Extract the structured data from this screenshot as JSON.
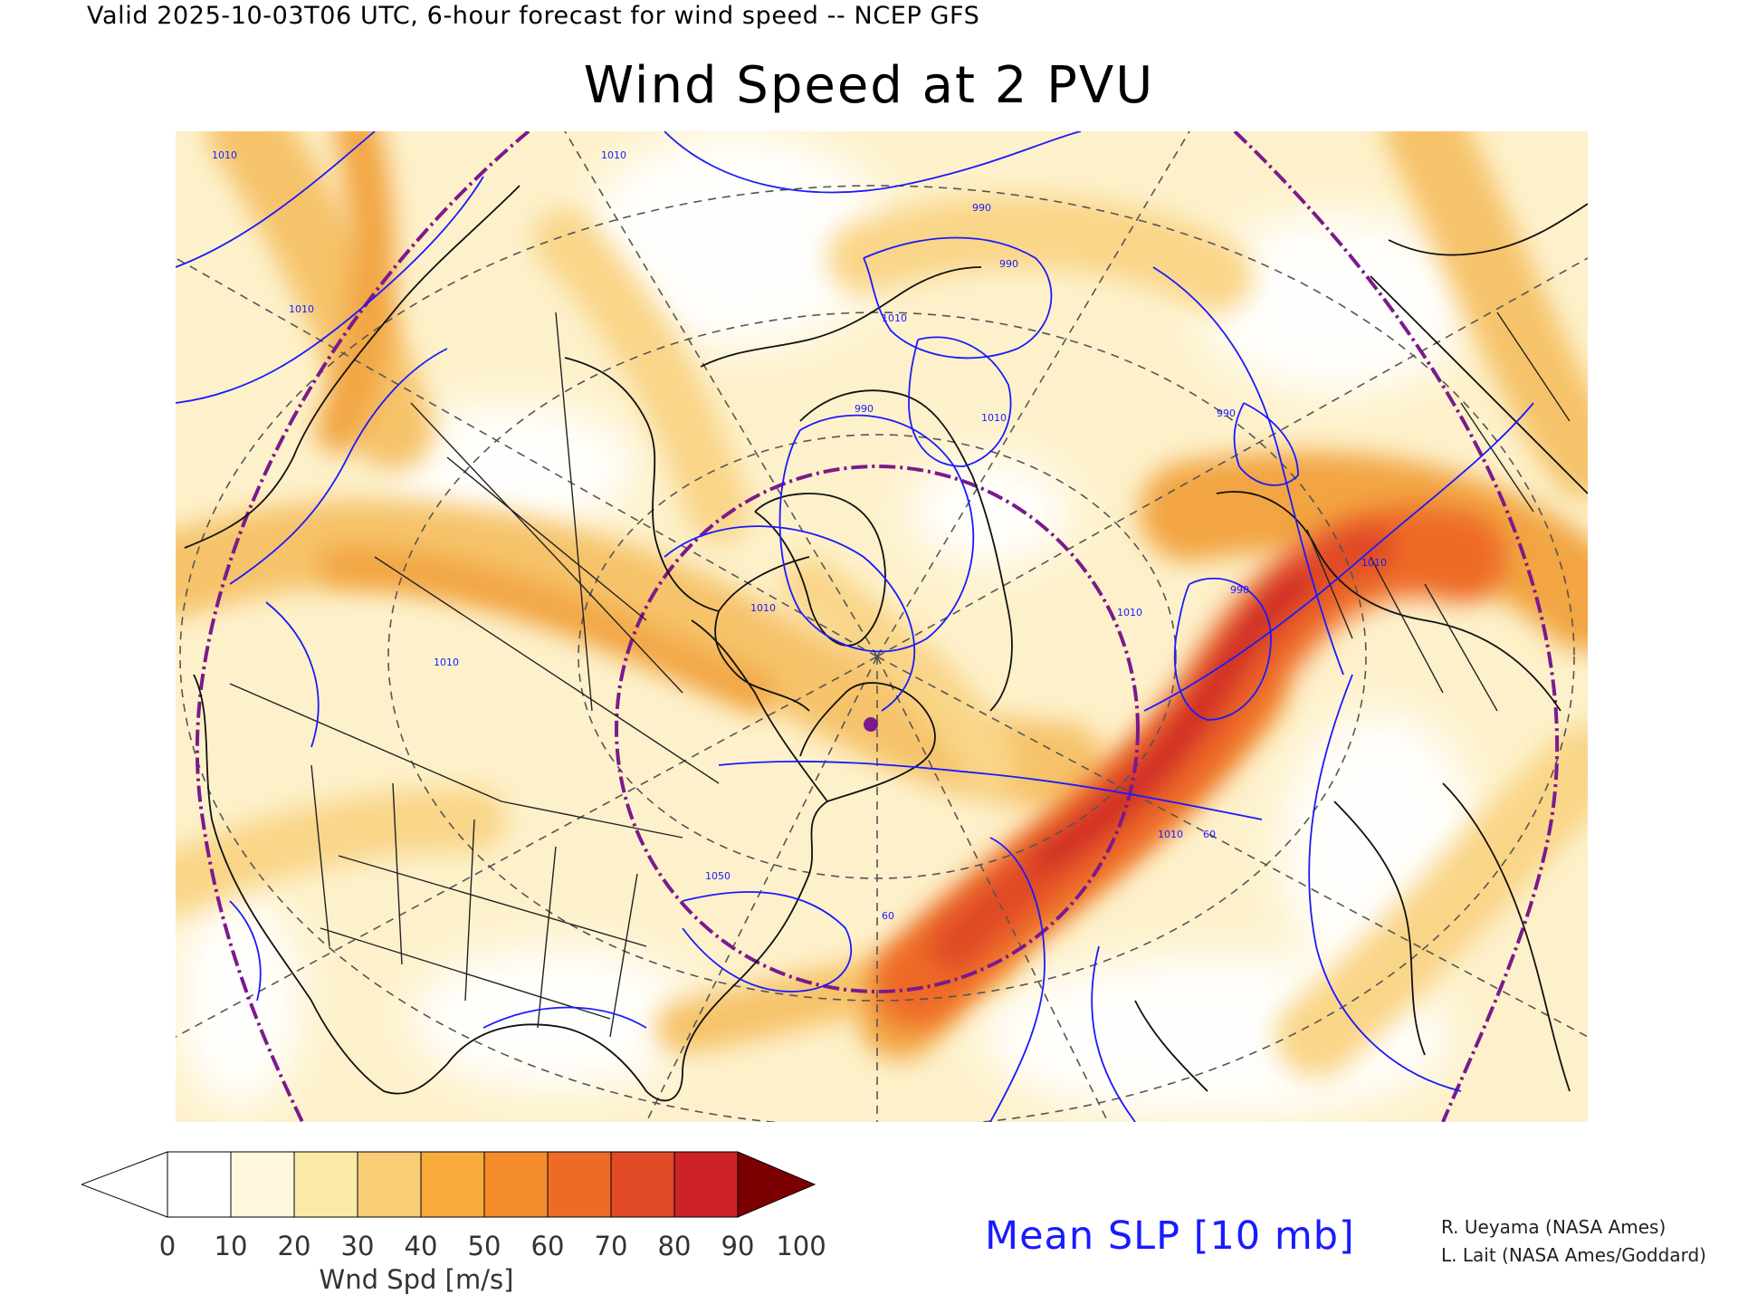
{
  "header": {
    "valid_line": "Valid 2025-10-03T06 UTC, 6-hour forecast for wind speed -- NCEP GFS",
    "title": "Wind Speed at 2 PVU"
  },
  "map": {
    "contour_labels": [
      "1010",
      "1010",
      "1010",
      "1010",
      "990",
      "990",
      "990",
      "990",
      "990",
      "1010",
      "1010",
      "1010",
      "1010",
      "1010",
      "1050",
      "60",
      "60",
      "1010"
    ]
  },
  "colorbar": {
    "ticks": [
      "0",
      "10",
      "20",
      "30",
      "40",
      "50",
      "60",
      "70",
      "80",
      "90",
      "100"
    ],
    "colors": [
      "#ffffff",
      "#fff8dc",
      "#fbeaa7",
      "#f9cd74",
      "#f8ab3a",
      "#f48c2c",
      "#ee6b26",
      "#e04a26",
      "#cc2228",
      "#a8191d",
      "#7d0000"
    ],
    "units": "Wnd Spd [m/s]"
  },
  "contour_legend": {
    "label": "Mean SLP [10 mb]",
    "color": "#1a1aff"
  },
  "credits": {
    "line1": "R. Ueyama (NASA Ames)",
    "line2": "L. Lait (NASA Ames/Goddard)"
  }
}
